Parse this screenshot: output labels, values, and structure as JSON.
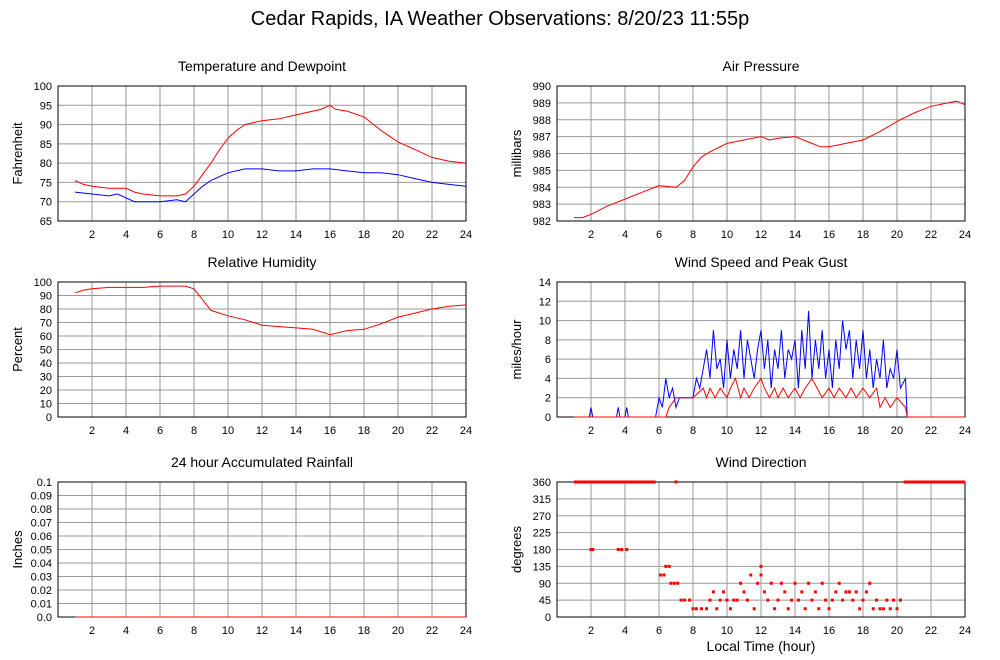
{
  "title": "Cedar Rapids, IA Weather Observations: 8/20/23 11:55p",
  "xlabel": "Local Time (hour)",
  "colors": {
    "red": "#ff0000",
    "blue": "#0000ff",
    "grid": "#999999"
  },
  "chart_data": [
    {
      "id": "temp",
      "type": "line",
      "title": "Temperature and Dewpoint",
      "ylabel": "Fahrenheit",
      "xlim": [
        0,
        24
      ],
      "ylim": [
        65,
        100
      ],
      "xticks": [
        2,
        4,
        6,
        8,
        10,
        12,
        14,
        16,
        18,
        20,
        22,
        24
      ],
      "yticks": [
        65,
        70,
        75,
        80,
        85,
        90,
        95,
        100
      ],
      "grid": true,
      "series": [
        {
          "color": "red",
          "x": [
            1,
            1.5,
            2,
            3,
            4,
            4.5,
            5,
            6,
            7,
            7.5,
            8,
            8.5,
            9,
            9.5,
            10,
            10.5,
            11,
            12,
            13,
            14,
            15,
            15.5,
            16,
            16.3,
            17,
            18,
            19,
            20,
            21,
            22,
            23,
            24
          ],
          "y": [
            75.5,
            74.5,
            74,
            73.5,
            73.5,
            72.5,
            72,
            71.5,
            71.5,
            72,
            74,
            77,
            80,
            83.5,
            86.5,
            88.5,
            90,
            91,
            91.5,
            92.5,
            93.5,
            94,
            95,
            94,
            93.5,
            92,
            88.5,
            85.5,
            83.5,
            81.5,
            80.5,
            80
          ]
        },
        {
          "color": "blue",
          "x": [
            1,
            2,
            3,
            3.5,
            4,
            4.5,
            5,
            6,
            7,
            7.5,
            8,
            8.5,
            9,
            9.5,
            10,
            11,
            12,
            13,
            14,
            15,
            16,
            17,
            18,
            19,
            20,
            21,
            22,
            23,
            24
          ],
          "y": [
            72.5,
            72,
            71.5,
            72,
            71,
            70,
            70,
            70,
            70.5,
            70,
            72,
            74,
            75.5,
            76.5,
            77.5,
            78.5,
            78.5,
            78,
            78,
            78.5,
            78.5,
            78,
            77.5,
            77.5,
            77,
            76,
            75,
            74.5,
            74
          ]
        }
      ]
    },
    {
      "id": "press",
      "type": "line",
      "title": "Air Pressure",
      "ylabel": "millibars",
      "xlim": [
        0,
        24
      ],
      "ylim": [
        982,
        990
      ],
      "xticks": [
        2,
        4,
        6,
        8,
        10,
        12,
        14,
        16,
        18,
        20,
        22,
        24
      ],
      "yticks": [
        982,
        983,
        984,
        985,
        986,
        987,
        988,
        989,
        990
      ],
      "grid": true,
      "series": [
        {
          "color": "red",
          "x": [
            1,
            1.5,
            2,
            3,
            4,
            5,
            6,
            7,
            7.5,
            8,
            8.5,
            9,
            10,
            11,
            12,
            12.5,
            13,
            14,
            14.5,
            15,
            15.5,
            16,
            17,
            18,
            19,
            20,
            21,
            22,
            23,
            23.5,
            24
          ],
          "y": [
            982.2,
            982.2,
            982.4,
            982.9,
            983.3,
            983.7,
            984.1,
            984.0,
            984.4,
            985.2,
            985.8,
            986.1,
            986.6,
            986.8,
            987.0,
            986.8,
            986.9,
            987.0,
            986.8,
            986.6,
            986.4,
            986.4,
            986.6,
            986.8,
            987.3,
            987.9,
            988.4,
            988.8,
            989.0,
            989.1,
            988.9
          ]
        }
      ]
    },
    {
      "id": "rh",
      "type": "line",
      "title": "Relative Humidity",
      "ylabel": "Percent",
      "xlim": [
        0,
        24
      ],
      "ylim": [
        0,
        100
      ],
      "xticks": [
        2,
        4,
        6,
        8,
        10,
        12,
        14,
        16,
        18,
        20,
        22,
        24
      ],
      "yticks": [
        0,
        10,
        20,
        30,
        40,
        50,
        60,
        70,
        80,
        90,
        100
      ],
      "grid": true,
      "series": [
        {
          "color": "red",
          "x": [
            1,
            1.5,
            2,
            3,
            4,
            5,
            6,
            7,
            7.5,
            8,
            8.5,
            9,
            10,
            11,
            12,
            13,
            14,
            15,
            16,
            17,
            18,
            19,
            20,
            21,
            22,
            23,
            24
          ],
          "y": [
            92,
            94,
            95,
            96,
            96,
            96,
            97,
            97,
            97,
            95,
            87,
            79,
            75,
            72,
            68,
            67,
            66,
            65,
            61,
            64,
            65,
            69,
            74,
            77,
            80,
            82,
            83
          ]
        }
      ]
    },
    {
      "id": "wind",
      "type": "line",
      "title": "Wind Speed and Peak Gust",
      "ylabel": "miles/hour",
      "xlim": [
        0,
        24
      ],
      "ylim": [
        0,
        14
      ],
      "xticks": [
        2,
        4,
        6,
        8,
        10,
        12,
        14,
        16,
        18,
        20,
        22,
        24
      ],
      "yticks": [
        0,
        2,
        4,
        6,
        8,
        10,
        12,
        14
      ],
      "grid": true,
      "series": [
        {
          "color": "blue",
          "x": [
            1,
            1.9,
            2,
            2.1,
            3.5,
            3.6,
            3.7,
            4,
            4.1,
            4.2,
            5.8,
            6,
            6.2,
            6.4,
            6.6,
            6.8,
            7,
            7.2,
            7.6,
            8,
            8.2,
            8.4,
            8.6,
            8.8,
            9,
            9.2,
            9.4,
            9.6,
            9.8,
            10,
            10.2,
            10.4,
            10.6,
            10.8,
            11,
            11.2,
            11.4,
            11.6,
            11.8,
            12,
            12.2,
            12.4,
            12.6,
            12.8,
            13,
            13.2,
            13.4,
            13.6,
            13.8,
            14,
            14.2,
            14.4,
            14.6,
            14.8,
            15,
            15.2,
            15.4,
            15.6,
            15.8,
            16,
            16.2,
            16.4,
            16.6,
            16.8,
            17,
            17.2,
            17.4,
            17.6,
            17.8,
            18,
            18.2,
            18.4,
            18.6,
            18.8,
            19,
            19.2,
            19.4,
            19.6,
            19.8,
            20,
            20.2,
            20.5,
            20.6,
            24
          ],
          "y": [
            0,
            0,
            1,
            0,
            0,
            1,
            0,
            0,
            1,
            0,
            0,
            2,
            1,
            4,
            2,
            3,
            1,
            2,
            2,
            2,
            4,
            3,
            5,
            7,
            4,
            9,
            5,
            6,
            3,
            8,
            4,
            7,
            5,
            9,
            4,
            8,
            6,
            4,
            7,
            9,
            5,
            8,
            3,
            7,
            5,
            9,
            4,
            7,
            6,
            8,
            3,
            9,
            5,
            11,
            4,
            8,
            5,
            9,
            4,
            7,
            3,
            8,
            5,
            10,
            7,
            9,
            4,
            8,
            5,
            9,
            4,
            7,
            3,
            6,
            4,
            8,
            3,
            5,
            4,
            7,
            3,
            4,
            0,
            0
          ]
        },
        {
          "color": "red",
          "x": [
            1,
            6,
            6.4,
            6.6,
            7,
            8,
            8.6,
            8.8,
            9,
            9.3,
            9.6,
            10,
            10.2,
            10.5,
            10.8,
            11,
            11.3,
            11.6,
            12,
            12.2,
            12.5,
            12.8,
            13,
            13.3,
            13.6,
            14,
            14.3,
            14.6,
            15,
            15.3,
            15.6,
            16,
            16.3,
            16.6,
            17,
            17.3,
            17.6,
            18,
            18.4,
            18.8,
            19,
            19.3,
            19.6,
            20,
            20.5,
            20.6,
            24
          ],
          "y": [
            0,
            0,
            0,
            1,
            2,
            2,
            3,
            2,
            3,
            2,
            3,
            2,
            3,
            4,
            2,
            3,
            2,
            3,
            4,
            3,
            2,
            3,
            2,
            3,
            2,
            3,
            2,
            3,
            4,
            3,
            2,
            3,
            2,
            3,
            2,
            3,
            2,
            3,
            2,
            3,
            1,
            2,
            1,
            2,
            1,
            0,
            0
          ]
        }
      ]
    },
    {
      "id": "rain",
      "type": "line",
      "title": "24 hour Accumulated Rainfall",
      "ylabel": "Inches",
      "xlim": [
        0,
        24
      ],
      "ylim": [
        0,
        0.1
      ],
      "xticks": [
        2,
        4,
        6,
        8,
        10,
        12,
        14,
        16,
        18,
        20,
        22,
        24
      ],
      "yticks": [
        0.0,
        0.01,
        0.02,
        0.03,
        0.04,
        0.05,
        0.06,
        0.07,
        0.08,
        0.09,
        0.1
      ],
      "ytick_labels": [
        "0.0",
        "0.01",
        "0.02",
        "0.03",
        "0.04",
        "0.05",
        "0.06",
        "0.07",
        "0.08",
        "0.09",
        "0.1"
      ],
      "grid": true,
      "series": [
        {
          "color": "red",
          "x": [
            1,
            24
          ],
          "y": [
            0,
            0
          ]
        }
      ]
    },
    {
      "id": "dir",
      "type": "scatter",
      "title": "Wind Direction",
      "ylabel": "degrees",
      "xlim": [
        0,
        24
      ],
      "ylim": [
        0,
        360
      ],
      "xticks": [
        2,
        4,
        6,
        8,
        10,
        12,
        14,
        16,
        18,
        20,
        22,
        24
      ],
      "yticks": [
        0,
        45,
        90,
        135,
        180,
        225,
        270,
        315,
        360
      ],
      "grid": true,
      "segments": [
        {
          "x0": 1.0,
          "x1": 5.8,
          "y": 360
        },
        {
          "x0": 20.4,
          "x1": 24,
          "y": 360
        }
      ],
      "points": [
        [
          2,
          180
        ],
        [
          2.1,
          180
        ],
        [
          3.6,
          180
        ],
        [
          3.8,
          180
        ],
        [
          4.1,
          180
        ],
        [
          6.1,
          112
        ],
        [
          6.3,
          112
        ],
        [
          6.4,
          135
        ],
        [
          6.6,
          135
        ],
        [
          6.7,
          90
        ],
        [
          6.9,
          90
        ],
        [
          7.1,
          90
        ],
        [
          7.3,
          45
        ],
        [
          7.5,
          45
        ],
        [
          7.8,
          45
        ],
        [
          8.0,
          22
        ],
        [
          8.2,
          22
        ],
        [
          8.5,
          22
        ],
        [
          8.8,
          22
        ],
        [
          9.0,
          45
        ],
        [
          9.2,
          67
        ],
        [
          9.4,
          22
        ],
        [
          9.6,
          45
        ],
        [
          9.8,
          67
        ],
        [
          10.0,
          45
        ],
        [
          10.2,
          22
        ],
        [
          10.4,
          45
        ],
        [
          10.6,
          45
        ],
        [
          10.8,
          90
        ],
        [
          11.0,
          67
        ],
        [
          11.2,
          45
        ],
        [
          11.4,
          112
        ],
        [
          11.6,
          22
        ],
        [
          11.8,
          90
        ],
        [
          12.0,
          112
        ],
        [
          12.2,
          67
        ],
        [
          12.4,
          45
        ],
        [
          12.6,
          90
        ],
        [
          12.8,
          22
        ],
        [
          13.0,
          45
        ],
        [
          13.2,
          90
        ],
        [
          13.4,
          67
        ],
        [
          13.6,
          22
        ],
        [
          13.8,
          45
        ],
        [
          14.0,
          90
        ],
        [
          14.2,
          45
        ],
        [
          14.4,
          67
        ],
        [
          14.6,
          22
        ],
        [
          14.8,
          90
        ],
        [
          15.0,
          45
        ],
        [
          15.2,
          67
        ],
        [
          15.4,
          22
        ],
        [
          15.6,
          90
        ],
        [
          15.8,
          45
        ],
        [
          16.0,
          22
        ],
        [
          16.2,
          45
        ],
        [
          16.4,
          67
        ],
        [
          16.6,
          90
        ],
        [
          16.8,
          45
        ],
        [
          17.0,
          67
        ],
        [
          17.2,
          67
        ],
        [
          17.4,
          45
        ],
        [
          17.6,
          67
        ],
        [
          17.8,
          22
        ],
        [
          18.0,
          45
        ],
        [
          18.2,
          67
        ],
        [
          18.4,
          90
        ],
        [
          18.6,
          22
        ],
        [
          18.8,
          45
        ],
        [
          19.0,
          22
        ],
        [
          19.2,
          22
        ],
        [
          19.4,
          45
        ],
        [
          19.6,
          22
        ],
        [
          19.8,
          45
        ],
        [
          20.0,
          22
        ],
        [
          20.2,
          45
        ],
        [
          7.0,
          360
        ],
        [
          12.0,
          135
        ]
      ]
    }
  ]
}
